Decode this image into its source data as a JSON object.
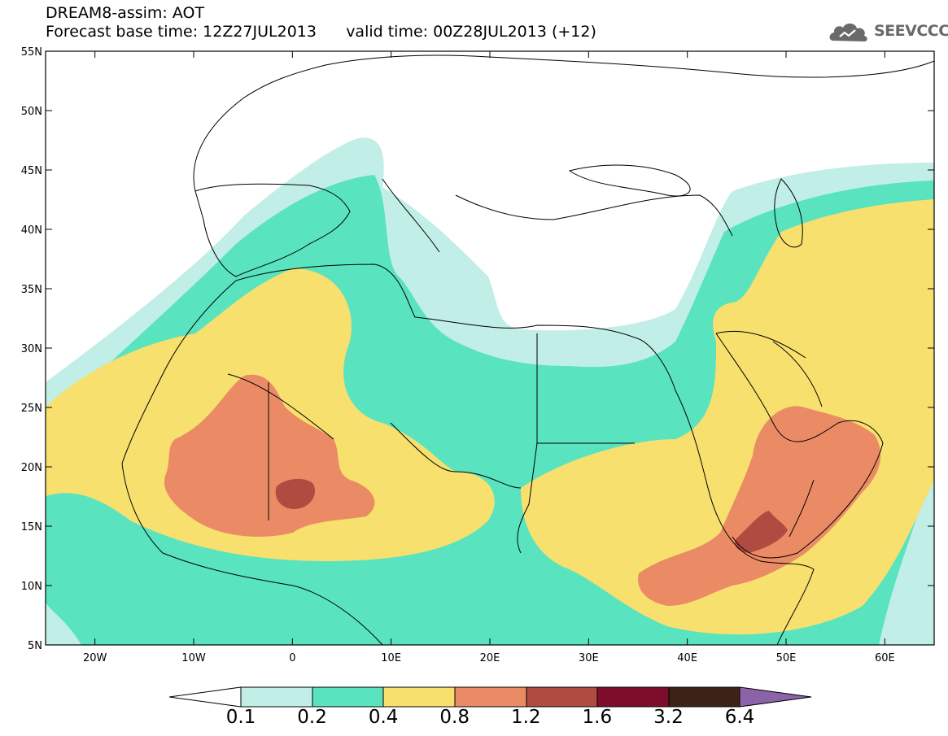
{
  "title": {
    "line1": "DREAM8-assim: AOT",
    "line2": "Forecast base time: 12Z27JUL2013      valid time: 00Z28JUL2013 (+12)"
  },
  "logo": {
    "text": "SEEVCCC",
    "icon": "cloud-icon"
  },
  "map": {
    "variable": "AOT",
    "lat_ticks": [
      "55N",
      "50N",
      "45N",
      "40N",
      "35N",
      "30N",
      "25N",
      "20N",
      "15N",
      "10N",
      "5N"
    ],
    "lon_ticks": [
      "20W",
      "10W",
      "0",
      "10E",
      "20E",
      "30E",
      "40E",
      "50E",
      "60E"
    ],
    "extent": {
      "lon_min": -25,
      "lon_max": 65,
      "lat_min": 5,
      "lat_max": 55
    }
  },
  "colorbar": {
    "labels": [
      "0.1",
      "0.2",
      "0.4",
      "0.8",
      "1.2",
      "1.6",
      "3.2",
      "6.4"
    ],
    "colors": [
      "#ffffff",
      "#c1eee6",
      "#59e3bf",
      "#f7e06e",
      "#eb8b65",
      "#b04b42",
      "#7d0d2a",
      "#3b2316",
      "#8a63a8"
    ]
  }
}
